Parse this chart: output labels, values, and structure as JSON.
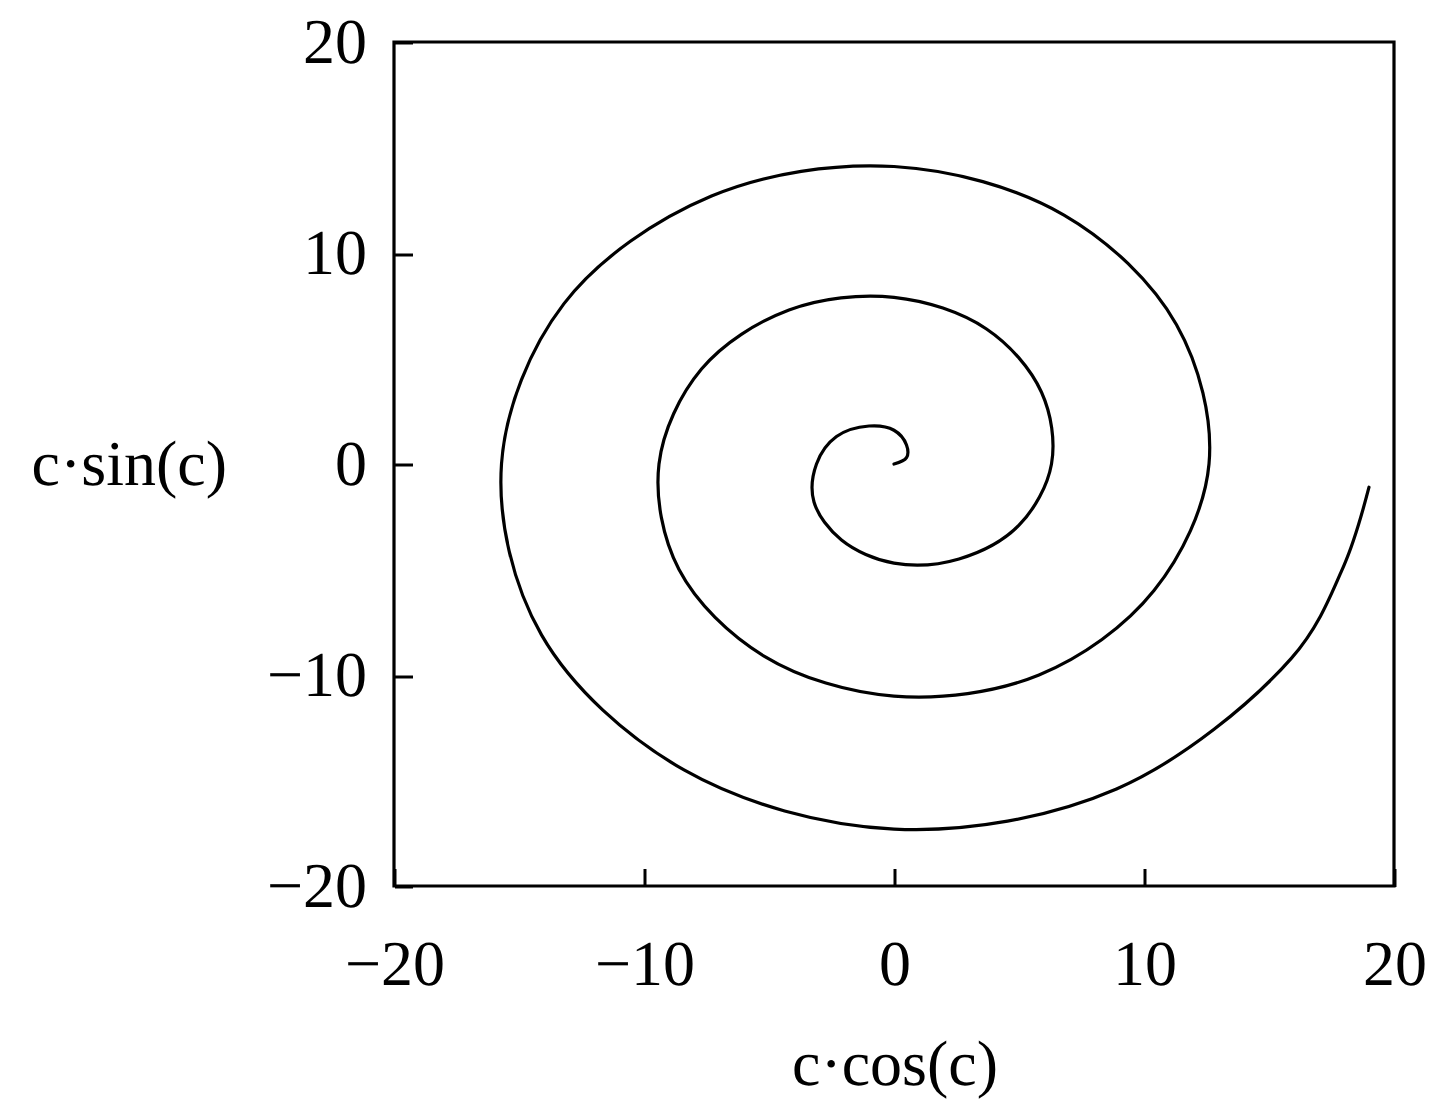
{
  "chart_data": {
    "type": "line",
    "xlabel": "c·cos(c)",
    "ylabel": "c·sin(c)",
    "x": [
      0,
      0.5,
      0.5,
      0,
      -1.0,
      -2.3,
      -3.1,
      -3.2,
      -2.1,
      0,
      2.6,
      5.0,
      6.3,
      5.9,
      3.7,
      0,
      -4.2,
      -7.7,
      -9.4,
      -8.6,
      -5.2,
      0,
      5.8,
      10.4,
      12.6,
      11.3,
      6.8,
      0,
      -7.3,
      -13.2,
      -15.7,
      -14.1,
      -8.4,
      0,
      8.9,
      15.9,
      18.0,
      19.0
    ],
    "series": [
      {
        "color": "#000000",
        "values": [
          0,
          0.3,
          0.9,
          1.6,
          1.8,
          1.3,
          0,
          -1.8,
          -3.6,
          -4.7,
          -4.5,
          -2.9,
          0,
          3.4,
          6.4,
          7.9,
          7.3,
          4.5,
          0,
          -5.0,
          -9.1,
          -11.0,
          -10.0,
          -6.0,
          0,
          6.6,
          11.8,
          14.1,
          12.7,
          7.6,
          0,
          -8.1,
          -14.5,
          -17.3,
          -15.4,
          -9.2,
          -4.8,
          -1.1
        ]
      }
    ],
    "xlim": [
      -20,
      20
    ],
    "ylim": [
      -20,
      20
    ],
    "xticks": [
      -20,
      -10,
      0,
      10,
      20
    ],
    "yticks": [
      -20,
      -10,
      0,
      10,
      20
    ],
    "grid": false,
    "marker": "none",
    "line_style": "solid"
  }
}
